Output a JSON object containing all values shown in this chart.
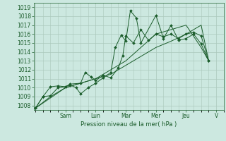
{
  "xlabel": "Pression niveau de la mer( hPa )",
  "bg_color": "#cce8e0",
  "grid_color": "#aac8bc",
  "line_color": "#1a5c2a",
  "ylim": [
    1007.5,
    1019.5
  ],
  "yticks": [
    1008,
    1009,
    1010,
    1011,
    1012,
    1013,
    1014,
    1015,
    1016,
    1017,
    1018,
    1019
  ],
  "day_labels": [
    "Sam",
    "Lun",
    "Mar",
    "Mer",
    "Jeu",
    "V"
  ],
  "day_positions": [
    2.0,
    4.0,
    6.0,
    8.0,
    10.0,
    12.0
  ],
  "xlim": [
    -0.1,
    12.5
  ],
  "series1_marked": [
    [
      0.0,
      1007.7
    ],
    [
      0.5,
      1009.0
    ],
    [
      1.0,
      1009.1
    ],
    [
      1.5,
      1010.0
    ],
    [
      2.0,
      1010.1
    ],
    [
      2.3,
      1010.3
    ],
    [
      2.7,
      1010.0
    ],
    [
      3.0,
      1009.3
    ],
    [
      3.5,
      1010.0
    ],
    [
      4.0,
      1010.5
    ],
    [
      4.5,
      1011.1
    ],
    [
      5.0,
      1011.7
    ],
    [
      5.3,
      1014.5
    ],
    [
      5.7,
      1015.9
    ],
    [
      6.0,
      1015.2
    ],
    [
      6.3,
      1018.6
    ],
    [
      6.7,
      1017.8
    ],
    [
      7.0,
      1015.0
    ],
    [
      8.0,
      1018.1
    ],
    [
      8.5,
      1015.5
    ],
    [
      9.0,
      1017.0
    ],
    [
      9.5,
      1015.3
    ],
    [
      10.0,
      1015.5
    ],
    [
      10.5,
      1016.0
    ],
    [
      11.0,
      1014.9
    ],
    [
      11.5,
      1013.0
    ]
  ],
  "series2_marked": [
    [
      0.0,
      1007.7
    ],
    [
      0.5,
      1009.0
    ],
    [
      1.0,
      1010.1
    ],
    [
      1.5,
      1010.2
    ],
    [
      2.0,
      1010.1
    ],
    [
      2.3,
      1010.4
    ],
    [
      3.0,
      1010.5
    ],
    [
      3.3,
      1011.7
    ],
    [
      3.7,
      1011.2
    ],
    [
      4.0,
      1010.8
    ],
    [
      4.5,
      1011.4
    ],
    [
      5.0,
      1011.1
    ],
    [
      5.5,
      1012.2
    ],
    [
      5.8,
      1013.6
    ],
    [
      6.0,
      1015.8
    ],
    [
      6.5,
      1015.0
    ],
    [
      7.0,
      1016.5
    ],
    [
      7.5,
      1015.3
    ],
    [
      8.0,
      1016.0
    ],
    [
      8.5,
      1015.7
    ],
    [
      9.0,
      1016.0
    ],
    [
      9.5,
      1015.5
    ],
    [
      10.0,
      1016.0
    ],
    [
      10.5,
      1016.2
    ],
    [
      11.0,
      1015.8
    ],
    [
      11.5,
      1013.0
    ]
  ],
  "series3_smooth": [
    [
      0.0,
      1007.7
    ],
    [
      1.0,
      1009.0
    ],
    [
      2.0,
      1010.0
    ],
    [
      3.0,
      1010.5
    ],
    [
      4.0,
      1011.0
    ],
    [
      5.0,
      1011.5
    ],
    [
      6.0,
      1012.5
    ],
    [
      7.0,
      1013.5
    ],
    [
      8.0,
      1014.5
    ],
    [
      9.0,
      1015.2
    ],
    [
      10.0,
      1016.0
    ],
    [
      11.0,
      1017.0
    ],
    [
      11.5,
      1013.0
    ]
  ],
  "series4_smooth": [
    [
      0.0,
      1007.7
    ],
    [
      2.0,
      1010.0
    ],
    [
      4.0,
      1011.0
    ],
    [
      6.0,
      1013.0
    ],
    [
      8.0,
      1016.0
    ],
    [
      10.0,
      1017.0
    ],
    [
      11.0,
      1014.5
    ],
    [
      11.5,
      1013.0
    ]
  ]
}
